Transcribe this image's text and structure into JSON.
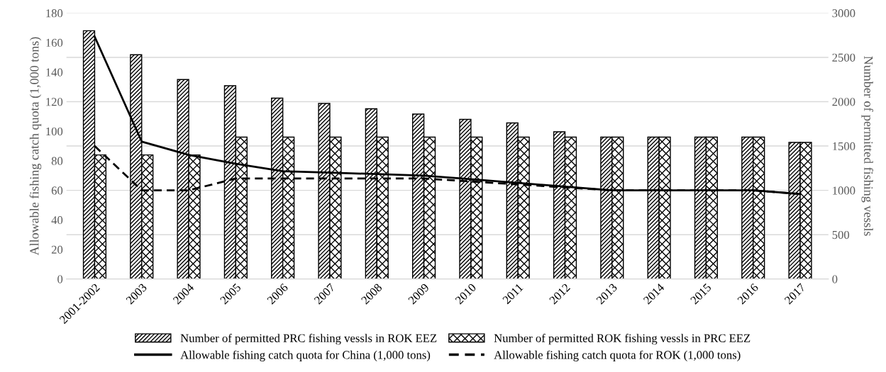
{
  "chart_data": {
    "type": "bar",
    "categories": [
      "2001-2002",
      "2003",
      "2004",
      "2005",
      "2006",
      "2007",
      "2008",
      "2009",
      "2010",
      "2011",
      "2012",
      "2013",
      "2014",
      "2015",
      "2016",
      "2017"
    ],
    "series": [
      {
        "name": "Number of permitted PRC fishing vessls in ROK EEZ",
        "axis": "y2",
        "color": "#000000",
        "values": [
          2800,
          2530,
          2250,
          2180,
          2040,
          1980,
          1920,
          1860,
          1800,
          1760,
          1660,
          1600,
          1600,
          1600,
          1600,
          1540
        ]
      },
      {
        "name": "Number of permitted ROK fishing vessls in PRC EEZ",
        "axis": "y2",
        "color": "#000000",
        "values": [
          1400,
          1400,
          1400,
          1600,
          1600,
          1600,
          1600,
          1600,
          1600,
          1600,
          1600,
          1600,
          1600,
          1600,
          1600,
          1540
        ]
      },
      {
        "name": "Allowable fishing catch quota for China (1,000 tons)",
        "type": "line",
        "color": "#000000",
        "line_style": "solid",
        "values": [
          164,
          93,
          84,
          78,
          73,
          72,
          71,
          70,
          67.5,
          65,
          62.5,
          60,
          60,
          60,
          60,
          57.5
        ]
      },
      {
        "name": "Allowable fishing catch quota for ROK (1,000 tons)",
        "type": "line",
        "color": "#000000",
        "line_style": "dashed",
        "values": [
          90,
          60,
          60,
          68,
          68,
          68,
          68,
          68,
          66,
          64,
          62,
          60,
          60,
          60,
          60,
          57.5
        ]
      }
    ],
    "ylabel": "Allowable fishing catch quota (1,000 tons)",
    "y2label": "Number of permitted fishing vessls",
    "ylim": [
      0,
      180
    ],
    "yticks": [
      0,
      20,
      40,
      60,
      80,
      100,
      120,
      140,
      160,
      180
    ],
    "y2lim": [
      0,
      3000
    ],
    "y2ticks": [
      0,
      500,
      1000,
      1500,
      2000,
      2500,
      3000
    ],
    "grid": "y",
    "legend": "bottom"
  }
}
